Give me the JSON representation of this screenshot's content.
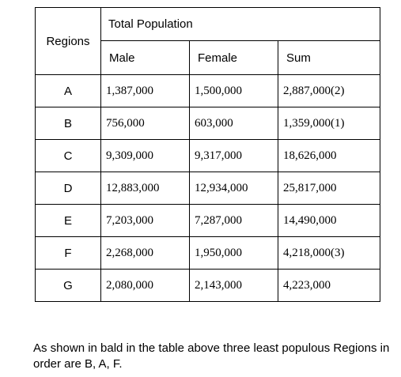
{
  "table": {
    "header": {
      "regions": "Regions",
      "total": "Total Population",
      "male": "Male",
      "female": "Female",
      "sum": "Sum"
    },
    "rows": [
      {
        "region": "A",
        "male": "1,387,000",
        "female": "1,500,000",
        "sum": "2,887,000(2)"
      },
      {
        "region": "B",
        "male": "756,000",
        "female": "603,000",
        "sum": "1,359,000(1)"
      },
      {
        "region": "C",
        "male": "9,309,000",
        "female": "9,317,000",
        "sum": "18,626,000"
      },
      {
        "region": "D",
        "male": "12,883,000",
        "female": "12,934,000",
        "sum": "25,817,000"
      },
      {
        "region": "E",
        "male": "7,203,000",
        "female": "7,287,000",
        "sum": "14,490,000"
      },
      {
        "region": "F",
        "male": "2,268,000",
        "female": "1,950,000",
        "sum": "4,218,000(3)"
      },
      {
        "region": "G",
        "male": "2,080,000",
        "female": "2,143,000",
        "sum": "4,223,000"
      }
    ]
  },
  "note": "As shown in bald in the table above three least populous Regions in order are B, A, F."
}
